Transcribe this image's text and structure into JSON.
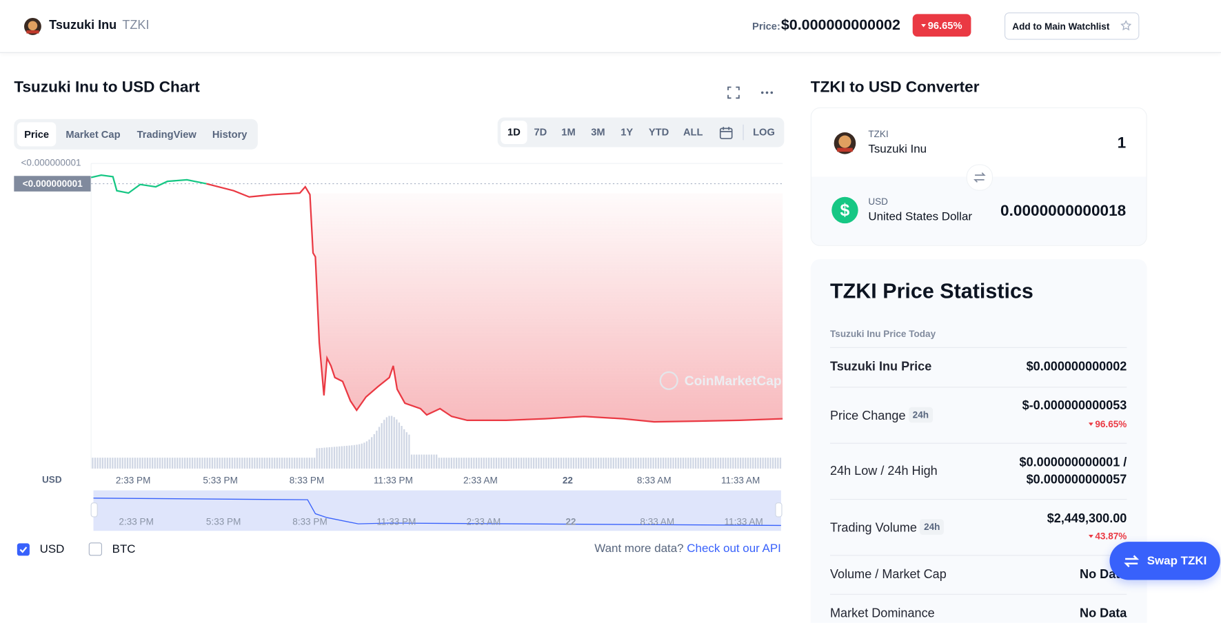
{
  "header": {
    "name": "Tsuzuki Inu",
    "symbol": "TZKI",
    "price_label": "Price:",
    "price": "$0.000000000002",
    "change": "96.65%",
    "watchlist_button": "Add to Main Watchlist"
  },
  "chart_panel": {
    "title": "Tsuzuki Inu to USD Chart",
    "tabs": [
      "Price",
      "Market Cap",
      "TradingView",
      "History"
    ],
    "ranges": [
      "1D",
      "7D",
      "1M",
      "3M",
      "1Y",
      "YTD",
      "ALL"
    ],
    "log_button": "LOG",
    "y_labels": [
      "<0.000000001",
      "<0.000000001"
    ],
    "axis_unit": "USD",
    "x_labels": [
      "2:33 PM",
      "5:33 PM",
      "8:33 PM",
      "11:33 PM",
      "2:33 AM",
      "22",
      "8:33 AM",
      "11:33 AM"
    ],
    "navigator_labels": [
      "2:33 PM",
      "5:33 PM",
      "8:33 PM",
      "11:33 PM",
      "2:33 AM",
      "22",
      "8:33 AM",
      "11:33 AM"
    ],
    "watermark": "CoinMarketCap",
    "checkboxes": [
      "USD",
      "BTC"
    ],
    "api_prompt": "Want more data?",
    "api_link": "Check out our API"
  },
  "converter": {
    "title": "TZKI to USD Converter",
    "from_symbol": "TZKI",
    "from_name": "Tsuzuki Inu",
    "from_amount": "1",
    "to_icon": "$",
    "to_symbol": "USD",
    "to_name": "United States Dollar",
    "to_amount": "0.0000000000018"
  },
  "statistics": {
    "title": "TZKI Price Statistics",
    "section": "Tsuzuki Inu Price Today",
    "rows": [
      {
        "label": "Tsuzuki Inu Price",
        "value": "$0.000000000002"
      },
      {
        "label": "Price Change",
        "badge": "24h",
        "value": "$-0.000000000053",
        "change": "96.65%"
      },
      {
        "label": "24h Low / 24h High",
        "value": "$0.000000000001 /",
        "value2": "$0.000000000057"
      },
      {
        "label": "Trading Volume",
        "badge": "24h",
        "value": "$2,449,300.00",
        "change": "43.87%"
      },
      {
        "label": "Volume / Market Cap",
        "value": "No Data"
      },
      {
        "label": "Market Dominance",
        "value": "No Data"
      }
    ]
  },
  "swap_button": "Swap TZKI"
}
